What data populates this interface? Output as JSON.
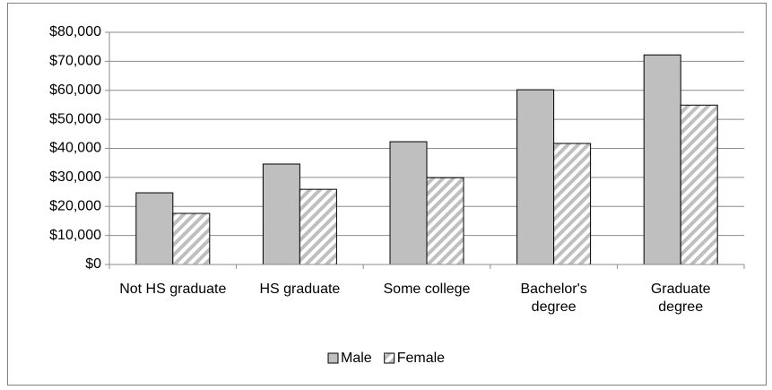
{
  "chart_data": {
    "type": "bar",
    "categories": [
      "Not HS graduate",
      "HS graduate",
      "Some college",
      "Bachelor's\ndegree",
      "Graduate\ndegree"
    ],
    "series": [
      {
        "name": "Male",
        "color": "#bfbfbf",
        "values": [
          24700,
          34600,
          42300,
          60200,
          72200
        ]
      },
      {
        "name": "Female",
        "color": "#a6a6a6",
        "hatch": true,
        "values": [
          17600,
          25900,
          29900,
          41700,
          54900
        ]
      }
    ],
    "ylim": [
      0,
      80000
    ],
    "yticks": [
      {
        "value": 0,
        "label": "$0"
      },
      {
        "value": 10000,
        "label": "$10,000"
      },
      {
        "value": 20000,
        "label": "$20,000"
      },
      {
        "value": 30000,
        "label": "$30,000"
      },
      {
        "value": 40000,
        "label": "$40,000"
      },
      {
        "value": 50000,
        "label": "$50,000"
      },
      {
        "value": 60000,
        "label": "$60,000"
      },
      {
        "value": 70000,
        "label": "$70,000"
      },
      {
        "value": 80000,
        "label": "$80,000"
      }
    ],
    "grid": true,
    "legend": "bottom"
  }
}
